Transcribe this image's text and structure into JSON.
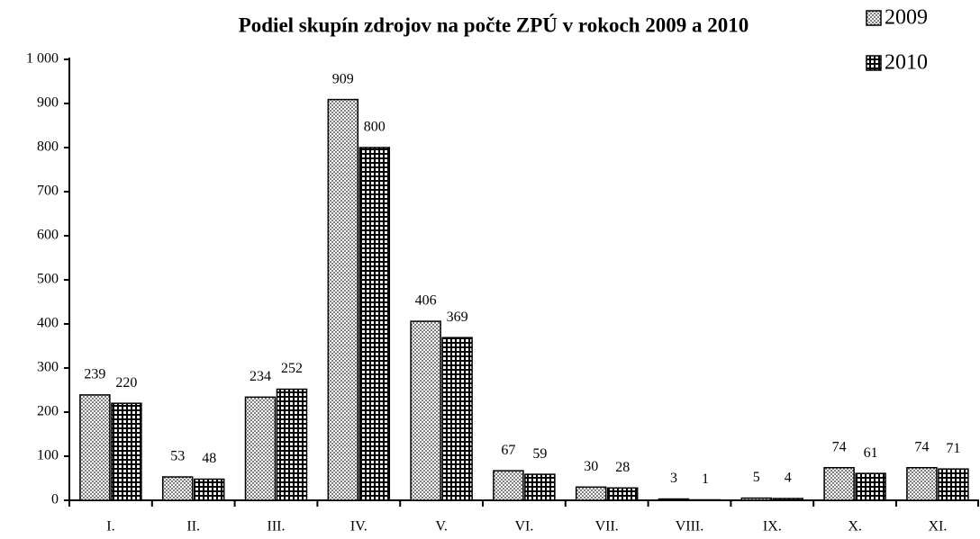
{
  "chart_data": {
    "type": "bar",
    "title": "Podiel skupín zdrojov na počte ZPÚ v rokoch 2009 a 2010",
    "categories": [
      "I.",
      "II.",
      "III.",
      "IV.",
      "V.",
      "VI.",
      "VII.",
      "VIII.",
      "IX.",
      "X.",
      "XI."
    ],
    "series": [
      {
        "name": "2009",
        "color": "#7f7f7f",
        "values": [
          239,
          53,
          234,
          909,
          406,
          67,
          30,
          3,
          5,
          74,
          74
        ]
      },
      {
        "name": "2010",
        "color": "#000000",
        "values": [
          220,
          48,
          252,
          800,
          369,
          59,
          28,
          1,
          4,
          61,
          71
        ]
      }
    ],
    "ylim": [
      0,
      1000
    ],
    "yticks": [
      0,
      100,
      200,
      300,
      400,
      500,
      600,
      700,
      800,
      900,
      {
        "value": 1000,
        "label": "1 000"
      }
    ],
    "legend": "top-right",
    "grid": false
  }
}
